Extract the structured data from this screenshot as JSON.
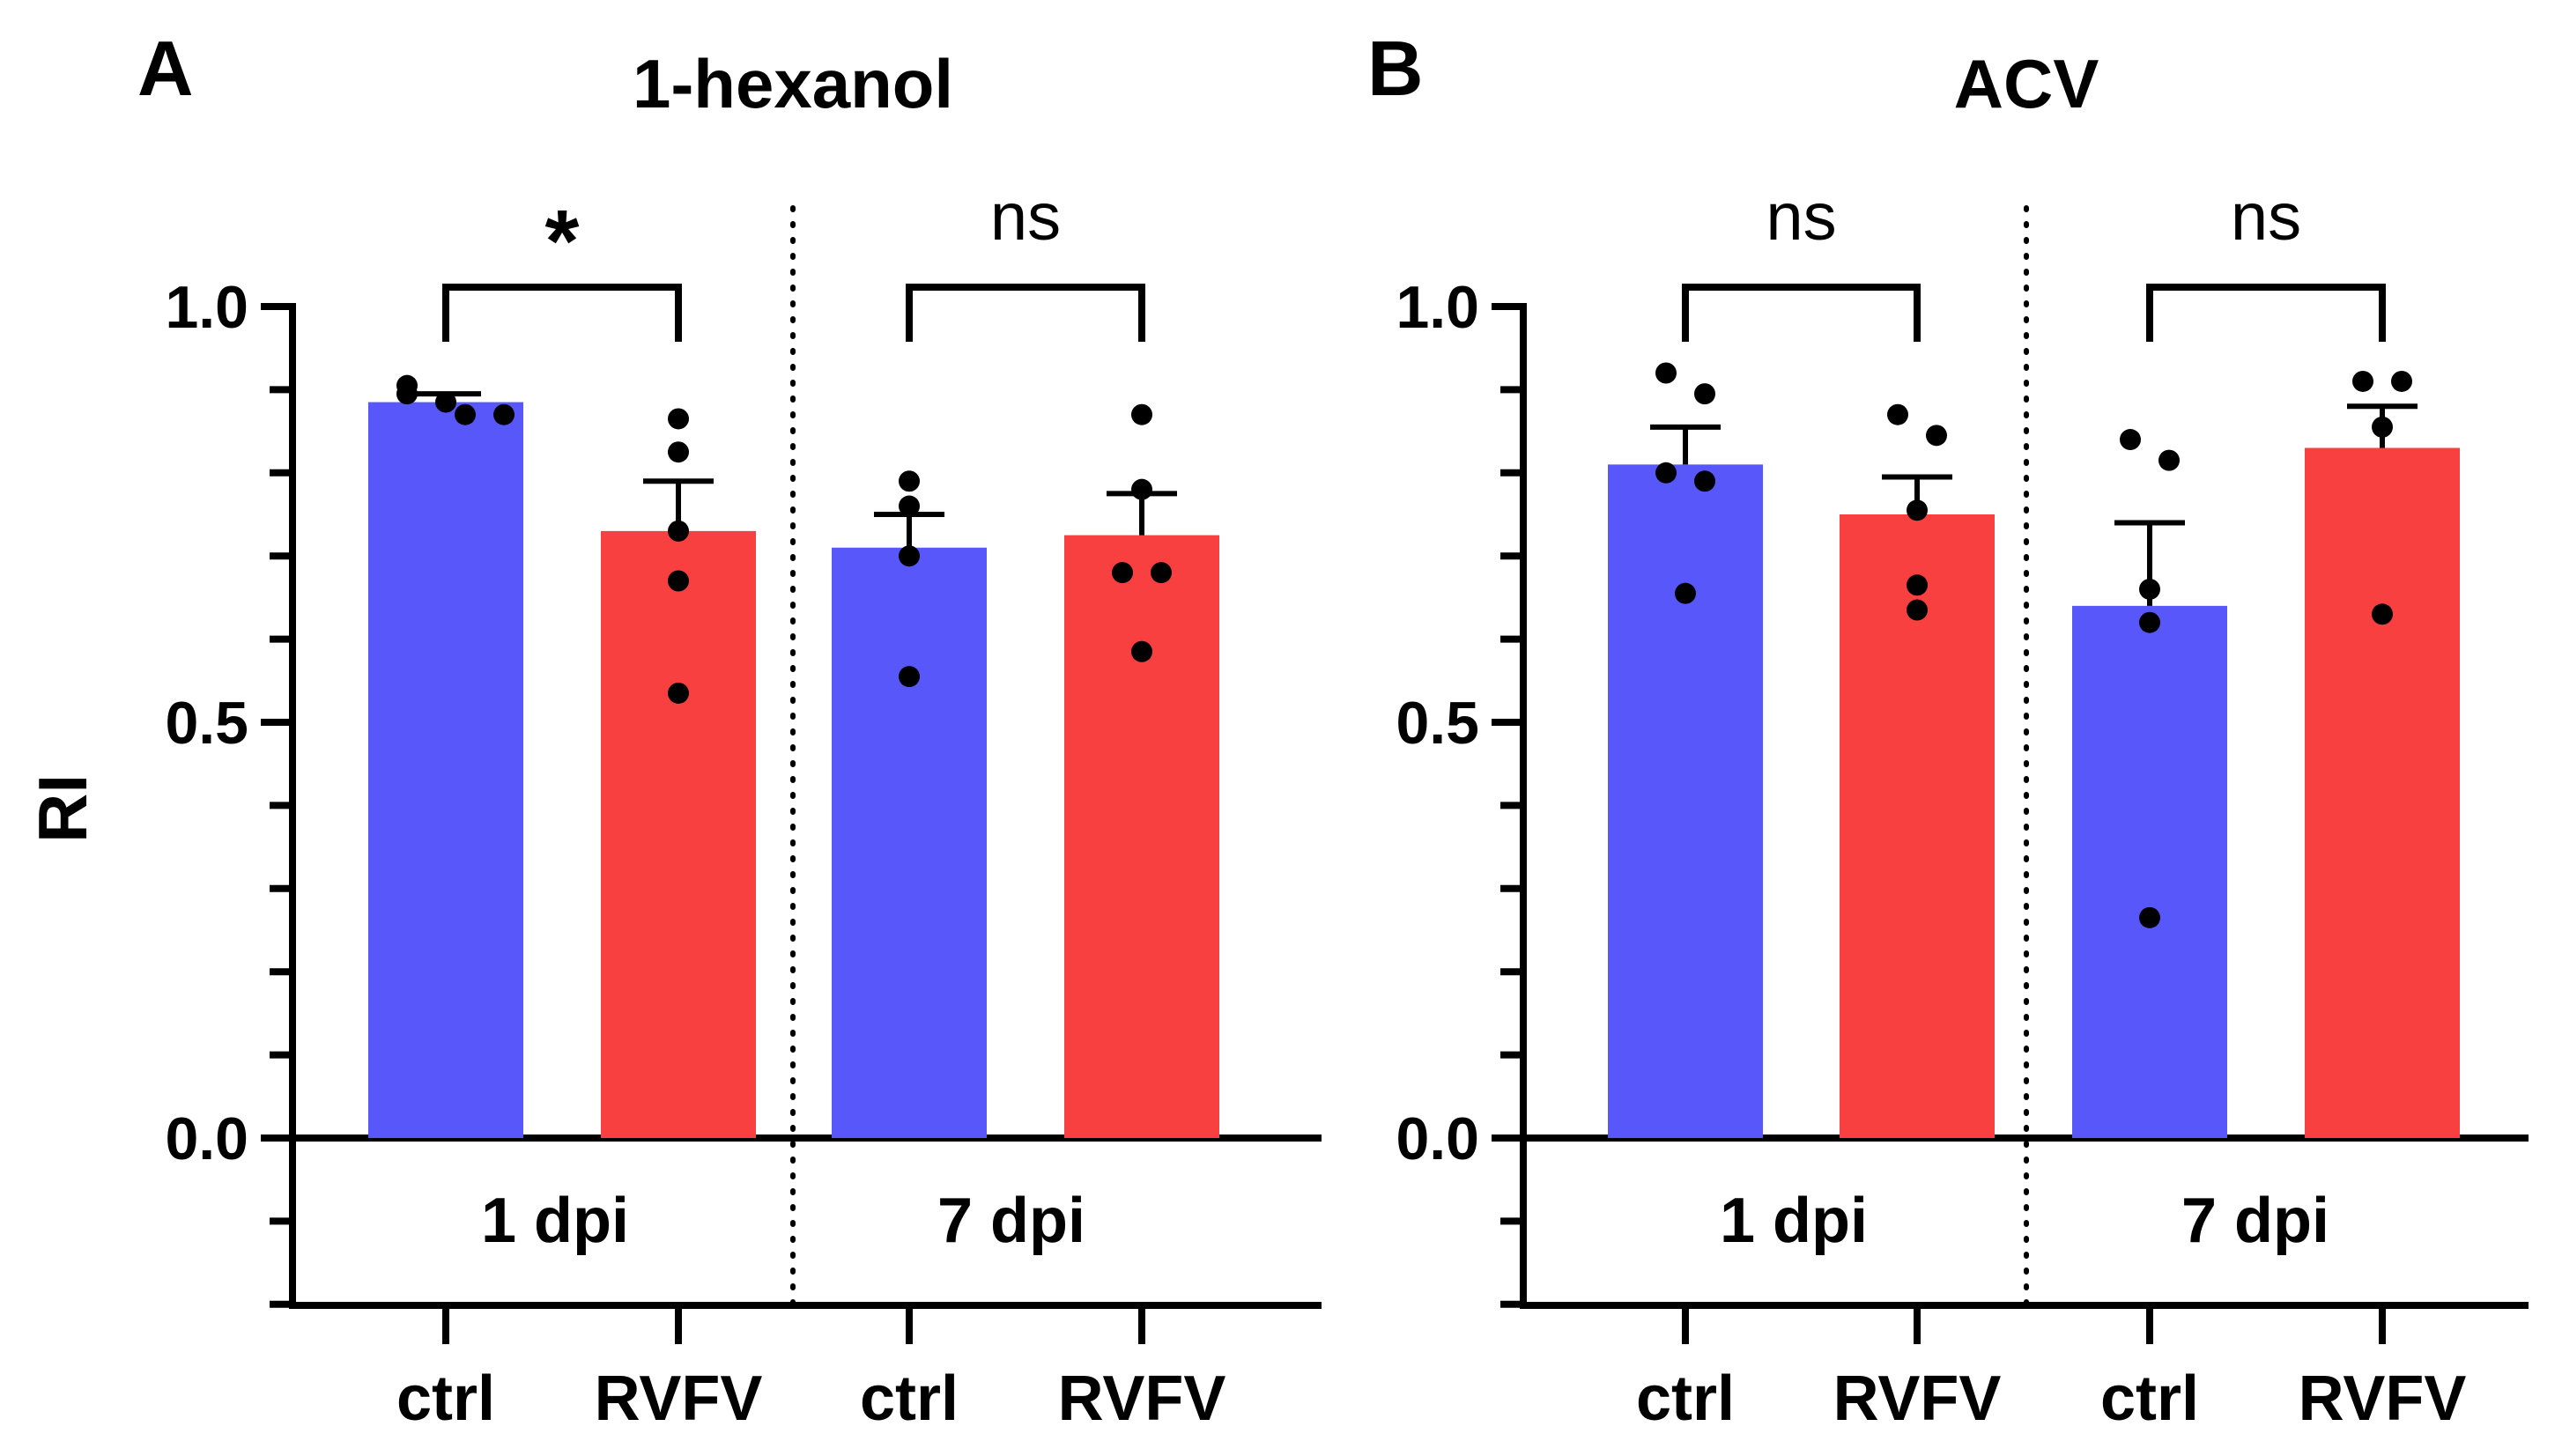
{
  "colors": {
    "ctrl": "#5858FA",
    "rvfv": "#F84040",
    "ink": "#000000"
  },
  "y_axis_label": "RI",
  "chart_data": [
    {
      "type": "bar",
      "panel": "A",
      "title": "1-hexanol",
      "ylabel": "RI",
      "ylim": [
        -0.2,
        1.0
      ],
      "yticks": [
        0.0,
        0.5,
        1.0
      ],
      "ytick_labels": [
        "0.0",
        "0.5",
        "1.0"
      ],
      "groups": [
        {
          "label": "1 dpi",
          "significance": "*",
          "bars": [
            {
              "category": "ctrl",
              "series": "ctrl",
              "mean": 0.885,
              "sem": 0.01,
              "points": [
                0.905,
                0.895,
                0.885,
                0.87,
                0.87
              ]
            },
            {
              "category": "RVFV",
              "series": "RVFV",
              "mean": 0.73,
              "sem": 0.06,
              "points": [
                0.865,
                0.825,
                0.73,
                0.67,
                0.535
              ]
            }
          ]
        },
        {
          "label": "7 dpi",
          "significance": "ns",
          "bars": [
            {
              "category": "ctrl",
              "series": "ctrl",
              "mean": 0.71,
              "sem": 0.04,
              "points": [
                0.79,
                0.76,
                0.7,
                0.555
              ]
            },
            {
              "category": "RVFV",
              "series": "RVFV",
              "mean": 0.725,
              "sem": 0.05,
              "points": [
                0.87,
                0.78,
                0.68,
                0.68,
                0.585
              ]
            }
          ]
        }
      ]
    },
    {
      "type": "bar",
      "panel": "B",
      "title": "ACV",
      "ylabel": "RI",
      "ylim": [
        -0.2,
        1.0
      ],
      "yticks": [
        0.0,
        0.5,
        1.0
      ],
      "ytick_labels": [
        "0.0",
        "0.5",
        "1.0"
      ],
      "groups": [
        {
          "label": "1 dpi",
          "significance": "ns",
          "bars": [
            {
              "category": "ctrl",
              "series": "ctrl",
              "mean": 0.81,
              "sem": 0.045,
              "points": [
                0.92,
                0.895,
                0.8,
                0.79,
                0.655
              ]
            },
            {
              "category": "RVFV",
              "series": "RVFV",
              "mean": 0.75,
              "sem": 0.045,
              "points": [
                0.87,
                0.845,
                0.755,
                0.665,
                0.635
              ]
            }
          ]
        },
        {
          "label": "7 dpi",
          "significance": "ns",
          "bars": [
            {
              "category": "ctrl",
              "series": "ctrl",
              "mean": 0.64,
              "sem": 0.1,
              "points": [
                0.84,
                0.815,
                0.66,
                0.62,
                0.265
              ]
            },
            {
              "category": "RVFV",
              "series": "RVFV",
              "mean": 0.83,
              "sem": 0.05,
              "points": [
                0.91,
                0.91,
                0.855,
                0.63
              ]
            }
          ]
        }
      ]
    }
  ]
}
